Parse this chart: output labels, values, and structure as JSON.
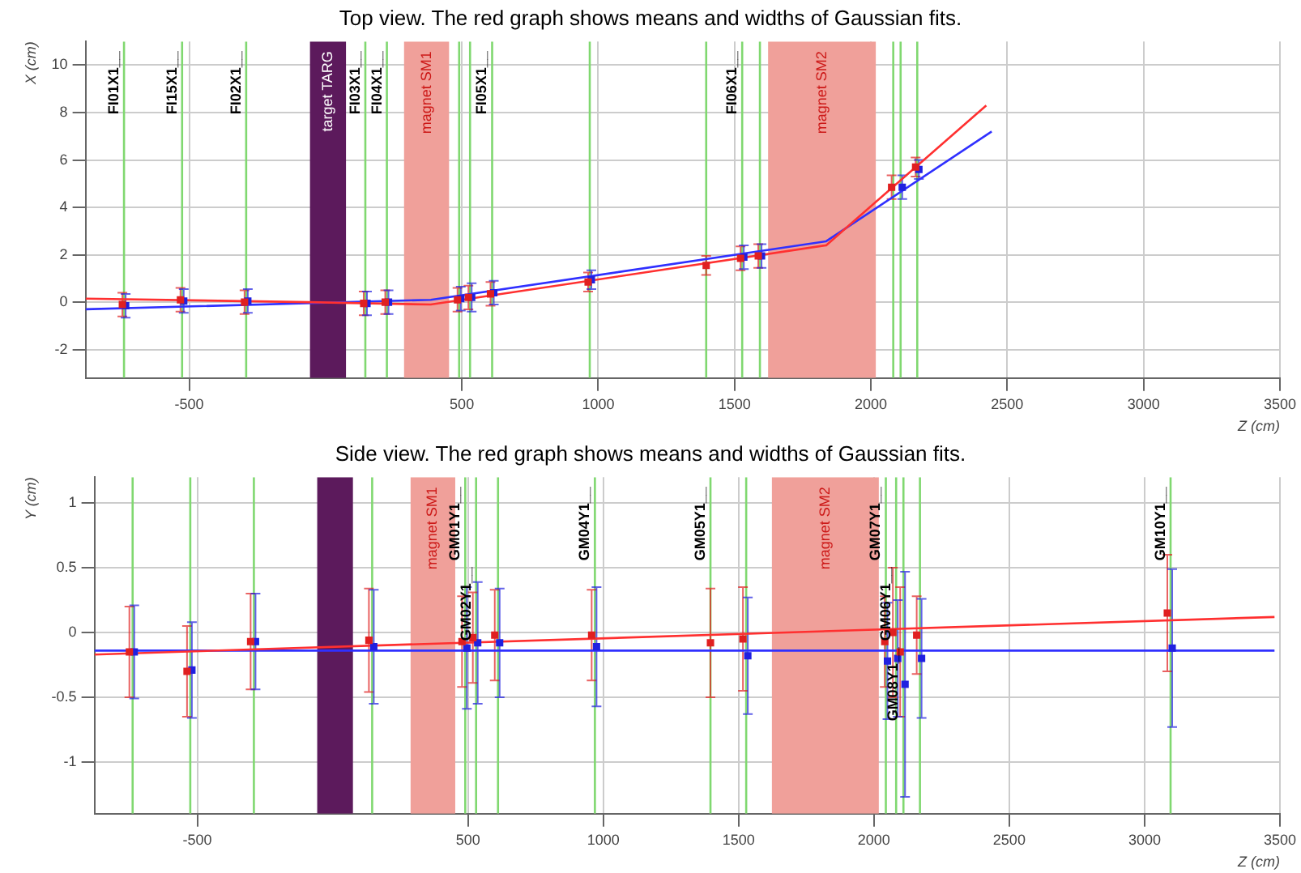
{
  "chart_data": [
    {
      "type": "scatter",
      "title": "Top view. The red graph shows means and widths of Gaussian fits.",
      "xlabel": "Z (cm)",
      "ylabel": "X (cm)",
      "xlim": [
        -880,
        3500
      ],
      "ylim": [
        -3.2,
        11
      ],
      "xticks": [
        -500,
        500,
        1000,
        1500,
        2000,
        2500,
        3000,
        3500
      ],
      "yticks": [
        -2,
        0,
        2,
        4,
        6,
        8,
        10
      ],
      "grid": true,
      "legend": false,
      "marker": "square",
      "series": [
        {
          "type": "scatter",
          "color": "#e02020",
          "x": [
            -745,
            -532,
            -297,
            140,
            219,
            484,
            524,
            605,
            963,
            1396,
            1522,
            1587,
            2076,
            2164
          ],
          "values": [
            -0.1,
            0.1,
            0.0,
            -0.05,
            0.0,
            0.1,
            0.2,
            0.35,
            0.85,
            1.55,
            1.85,
            1.95,
            4.85,
            5.7
          ],
          "errors": [
            0.5,
            0.5,
            0.5,
            0.5,
            0.5,
            0.5,
            0.5,
            0.5,
            0.4,
            0.4,
            0.5,
            0.5,
            0.5,
            0.4
          ]
        },
        {
          "type": "scatter",
          "color": "#2020e0",
          "x": [
            -733,
            -520,
            -285,
            152,
            231,
            496,
            536,
            617,
            975,
            1534,
            1599,
            2115,
            2176
          ],
          "values": [
            -0.15,
            0.05,
            0.05,
            -0.05,
            0.0,
            0.15,
            0.2,
            0.4,
            0.95,
            1.9,
            1.95,
            4.85,
            5.6
          ],
          "errors": [
            0.5,
            0.5,
            0.5,
            0.5,
            0.5,
            0.5,
            0.6,
            0.5,
            0.4,
            0.5,
            0.5,
            0.5,
            0.4
          ]
        },
        {
          "type": "line",
          "marker": "none",
          "color": "#ff3030",
          "x": [
            -880,
            -60,
            386,
            1836,
            2423
          ],
          "values": [
            0.15,
            0.0,
            -0.1,
            2.4,
            8.3
          ]
        },
        {
          "type": "line",
          "marker": "none",
          "color": "#3030ff",
          "x": [
            -880,
            386,
            1836,
            2443
          ],
          "values": [
            -0.3,
            0.1,
            2.57,
            7.2
          ]
        }
      ],
      "bands": [
        {
          "axis": "x",
          "from": -57,
          "to": 75,
          "label": "target TARG",
          "color": "#5c1a5c"
        },
        {
          "axis": "x",
          "from": 288,
          "to": 453,
          "label": "magnet SM1",
          "color": "#f0a09a"
        },
        {
          "axis": "x",
          "from": 1623,
          "to": 2018,
          "label": "magnet SM2",
          "color": "#f0a09a"
        }
      ],
      "ref_lines": [
        {
          "axis": "x",
          "value": -739,
          "label": "FI01X1__",
          "color": "#80d870"
        },
        {
          "axis": "x",
          "value": -526,
          "label": "FI15X1__",
          "color": "#80d870"
        },
        {
          "axis": "x",
          "value": -291,
          "label": "FI02X1__",
          "color": "#80d870"
        },
        {
          "axis": "x",
          "value": 146,
          "label": "FI03X1__",
          "color": "#80d870"
        },
        {
          "axis": "x",
          "value": 225,
          "label": "FI04X1__",
          "color": "#80d870"
        },
        {
          "axis": "x",
          "value": 490,
          "label": null,
          "color": "#80d870"
        },
        {
          "axis": "x",
          "value": 530,
          "label": null,
          "color": "#80d870"
        },
        {
          "axis": "x",
          "value": 611,
          "label": "FI05X1__",
          "color": "#80d870"
        },
        {
          "axis": "x",
          "value": 969,
          "label": null,
          "color": "#80d870"
        },
        {
          "axis": "x",
          "value": 1396,
          "label": null,
          "color": "#80d870"
        },
        {
          "axis": "x",
          "value": 1528,
          "label": "FI06X1__",
          "color": "#80d870"
        },
        {
          "axis": "x",
          "value": 1593,
          "label": null,
          "color": "#80d870"
        },
        {
          "axis": "x",
          "value": 2082,
          "label": null,
          "color": "#80d870"
        },
        {
          "axis": "x",
          "value": 2109,
          "label": null,
          "color": "#80d870"
        },
        {
          "axis": "x",
          "value": 2170,
          "label": null,
          "color": "#80d870"
        }
      ]
    },
    {
      "type": "scatter",
      "title": "Side view. The red graph shows means and widths of Gaussian fits.",
      "xlabel": "Z (cm)",
      "ylabel": "Y (cm)",
      "xlim": [
        -880,
        3500
      ],
      "ylim": [
        -1.4,
        1.2
      ],
      "xticks": [
        -500,
        500,
        1000,
        1500,
        2000,
        2500,
        3000,
        3500
      ],
      "yticks": [
        -1,
        -0.5,
        0,
        0.5,
        1
      ],
      "grid": true,
      "legend": false,
      "marker": "square",
      "series": [
        {
          "type": "scatter",
          "color": "#e02020",
          "x": [
            -751,
            -538,
            -303,
            134,
            478,
            518,
            599,
            957,
            1396,
            1516,
            2040,
            2070,
            2097,
            2158,
            3084
          ],
          "values": [
            -0.15,
            -0.3,
            -0.07,
            -0.06,
            -0.07,
            -0.04,
            -0.02,
            -0.02,
            -0.08,
            -0.05,
            -0.07,
            0.0,
            -0.15,
            -0.02,
            0.15
          ],
          "errors": [
            0.35,
            0.35,
            0.37,
            0.4,
            0.35,
            0.35,
            0.35,
            0.35,
            0.42,
            0.4,
            0.35,
            0.5,
            0.5,
            0.3,
            0.45
          ]
        },
        {
          "type": "scatter",
          "color": "#2020e0",
          "x": [
            -733,
            -520,
            -285,
            152,
            496,
            536,
            617,
            975,
            1534,
            2050,
            2088,
            2115,
            2176,
            3102
          ],
          "values": [
            -0.15,
            -0.29,
            -0.07,
            -0.11,
            -0.12,
            -0.08,
            -0.08,
            -0.11,
            -0.18,
            -0.22,
            -0.2,
            -0.4,
            -0.2,
            -0.12
          ],
          "errors": [
            0.36,
            0.37,
            0.37,
            0.44,
            0.47,
            0.47,
            0.42,
            0.46,
            0.45,
            0.45,
            0.45,
            0.87,
            0.46,
            0.61
          ]
        },
        {
          "type": "line",
          "marker": "none",
          "color": "#ff3030",
          "x": [
            -880,
            3480
          ],
          "values": [
            -0.17,
            0.12
          ]
        },
        {
          "type": "line",
          "marker": "none",
          "color": "#3030ff",
          "x": [
            -880,
            3480
          ],
          "values": [
            -0.14,
            -0.14
          ]
        }
      ],
      "bands": [
        {
          "axis": "x",
          "from": -57,
          "to": 75,
          "label": null,
          "color": "#5c1a5c"
        },
        {
          "axis": "x",
          "from": 288,
          "to": 453,
          "label": "magnet SM1",
          "color": "#f0a09a"
        },
        {
          "axis": "x",
          "from": 1623,
          "to": 2018,
          "label": "magnet SM2",
          "color": "#f0a09a"
        }
      ],
      "ref_lines": [
        {
          "axis": "x",
          "value": -739,
          "label": null,
          "color": "#80d870"
        },
        {
          "axis": "x",
          "value": -526,
          "label": null,
          "color": "#80d870"
        },
        {
          "axis": "x",
          "value": -291,
          "label": null,
          "color": "#80d870"
        },
        {
          "axis": "x",
          "value": 146,
          "label": null,
          "color": "#80d870"
        },
        {
          "axis": "x",
          "value": 490,
          "label": "GM01Y1__",
          "color": "#80d870"
        },
        {
          "axis": "x",
          "value": 530,
          "label": "GM02Y1__",
          "color": "#80d870"
        },
        {
          "axis": "x",
          "value": 611,
          "label": null,
          "color": "#80d870"
        },
        {
          "axis": "x",
          "value": 969,
          "label": "GM04Y1__",
          "color": "#80d870"
        },
        {
          "axis": "x",
          "value": 1396,
          "label": "GM05Y1__",
          "color": "#80d870"
        },
        {
          "axis": "x",
          "value": 1528,
          "label": null,
          "color": "#80d870"
        },
        {
          "axis": "x",
          "value": 2044,
          "label": "GM07Y1__",
          "color": "#80d870"
        },
        {
          "axis": "x",
          "value": 2082,
          "label": "GM06Y1__",
          "color": "#80d870"
        },
        {
          "axis": "x",
          "value": 2109,
          "label": "GM08Y1__",
          "color": "#80d870"
        },
        {
          "axis": "x",
          "value": 2170,
          "label": null,
          "color": "#80d870"
        },
        {
          "axis": "x",
          "value": 3096,
          "label": "GM10Y1__",
          "color": "#80d870"
        }
      ]
    }
  ]
}
